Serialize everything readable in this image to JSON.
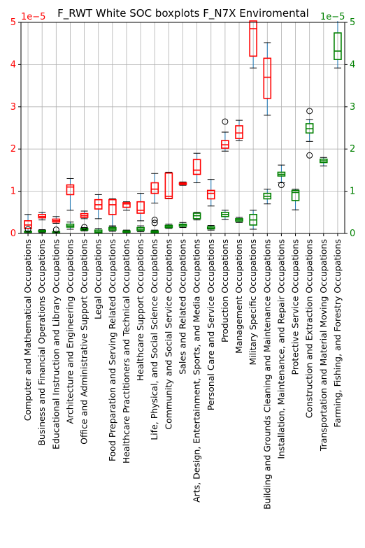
{
  "chart_data": {
    "type": "boxplot",
    "title": "F_RWT White SOC boxplots F_N7X Enviromental",
    "categories": [
      "Computer and Mathematical Occupations",
      "Business and Financial Operations Occupations",
      "Educational Instruction and Library Occupations",
      "Architecture and Engineering Occupations",
      "Office and Administrative Support Occupations",
      "Legal Occupations",
      "Food Preparation and Serving Related Occupations",
      "Healthcare Practitioners and Technical Occupations",
      "Healthcare Support Occupations",
      "Life, Physical, and Social Science Occupations",
      "Community and Social Service Occupations",
      "Sales and Related Occupations",
      "Arts, Design, Entertainment, Sports, and Media Occupations",
      "Personal Care and Service Occupations",
      "Production Occupations",
      "Management Occupations",
      "Military Specific Occupations",
      "Building and Grounds Cleaning and Maintenance Occupations",
      "Installation, Maintenance, and Repair Occupations",
      "Protective Service Occupations",
      "Construction and Extraction Occupations",
      "Transportation and Material Moving Occupations",
      "Farming, Fishing, and Forestry Occupations"
    ],
    "y_multiplier_left": "1e−5",
    "y_multiplier_right": "1e−5",
    "ylim": [
      0,
      5
    ],
    "yticks": [
      "0",
      "1",
      "2",
      "3",
      "4",
      "5"
    ],
    "grid": true,
    "series": [
      {
        "axis": "left",
        "color": "#ff0000",
        "boxes": [
          {
            "i": 0,
            "wlo": 0.05,
            "q1": 0.12,
            "med": 0.2,
            "q3": 0.3,
            "whi": 0.45,
            "fliers": []
          },
          {
            "i": 1,
            "wlo": 0.32,
            "q1": 0.37,
            "med": 0.4,
            "q3": 0.45,
            "whi": 0.5,
            "fliers": []
          },
          {
            "i": 2,
            "wlo": 0.24,
            "q1": 0.27,
            "med": 0.3,
            "q3": 0.34,
            "whi": 0.4,
            "fliers": []
          },
          {
            "i": 3,
            "wlo": 0.55,
            "q1": 0.92,
            "med": 1.1,
            "q3": 1.15,
            "whi": 1.3,
            "fliers": []
          },
          {
            "i": 4,
            "wlo": 0.35,
            "q1": 0.38,
            "med": 0.42,
            "q3": 0.47,
            "whi": 0.53,
            "fliers": []
          },
          {
            "i": 5,
            "wlo": 0.35,
            "q1": 0.58,
            "med": 0.68,
            "q3": 0.8,
            "whi": 0.92,
            "fliers": []
          },
          {
            "i": 6,
            "wlo": 0.18,
            "q1": 0.45,
            "med": 0.68,
            "q3": 0.8,
            "whi": 0.82,
            "fliers": []
          },
          {
            "i": 7,
            "wlo": 0.55,
            "q1": 0.62,
            "med": 0.7,
            "q3": 0.73,
            "whi": 0.75,
            "fliers": []
          },
          {
            "i": 8,
            "wlo": 0.3,
            "q1": 0.48,
            "med": 0.55,
            "q3": 0.75,
            "whi": 0.95,
            "fliers": []
          },
          {
            "i": 9,
            "wlo": 0.72,
            "q1": 0.95,
            "med": 1.05,
            "q3": 1.2,
            "whi": 1.42,
            "fliers": []
          },
          {
            "i": 10,
            "wlo": 0.82,
            "q1": 0.83,
            "med": 0.88,
            "q3": 1.43,
            "whi": 1.45,
            "fliers": []
          },
          {
            "i": 11,
            "wlo": 1.14,
            "q1": 1.16,
            "med": 1.18,
            "q3": 1.2,
            "whi": 1.22,
            "fliers": []
          },
          {
            "i": 12,
            "wlo": 1.2,
            "q1": 1.4,
            "med": 1.5,
            "q3": 1.75,
            "whi": 1.9,
            "fliers": []
          },
          {
            "i": 13,
            "wlo": 0.65,
            "q1": 0.82,
            "med": 0.95,
            "q3": 1.02,
            "whi": 1.28,
            "fliers": []
          },
          {
            "i": 14,
            "wlo": 1.95,
            "q1": 2.02,
            "med": 2.1,
            "q3": 2.2,
            "whi": 2.4,
            "fliers": [
              2.65
            ]
          },
          {
            "i": 15,
            "wlo": 2.2,
            "q1": 2.25,
            "med": 2.38,
            "q3": 2.55,
            "whi": 2.68,
            "fliers": []
          },
          {
            "i": 16,
            "wlo": 3.92,
            "q1": 4.2,
            "med": 4.85,
            "q3": 5.05,
            "whi": 5.2,
            "fliers": []
          },
          {
            "i": 17,
            "wlo": 2.8,
            "q1": 3.2,
            "med": 3.7,
            "q3": 4.15,
            "whi": 4.52,
            "fliers": []
          }
        ]
      },
      {
        "axis": "right",
        "color": "#008000",
        "boxes": [
          {
            "i": 0,
            "wlo": 0.02,
            "q1": 0.03,
            "med": 0.04,
            "q3": 0.05,
            "whi": 0.06,
            "fliers": [
              0.1
            ]
          },
          {
            "i": 1,
            "wlo": 0.02,
            "q1": 0.04,
            "med": 0.05,
            "q3": 0.07,
            "whi": 0.09,
            "fliers": []
          },
          {
            "i": 2,
            "wlo": 0.01,
            "q1": 0.02,
            "med": 0.03,
            "q3": 0.04,
            "whi": 0.05,
            "fliers": [
              0.09
            ]
          },
          {
            "i": 3,
            "wlo": 0.1,
            "q1": 0.15,
            "med": 0.18,
            "q3": 0.22,
            "whi": 0.27,
            "fliers": []
          },
          {
            "i": 4,
            "wlo": 0.06,
            "q1": 0.08,
            "med": 0.1,
            "q3": 0.12,
            "whi": 0.14,
            "fliers": [
              0.15
            ]
          },
          {
            "i": 5,
            "wlo": 0.0,
            "q1": 0.02,
            "med": 0.04,
            "q3": 0.08,
            "whi": 0.12,
            "fliers": []
          },
          {
            "i": 6,
            "wlo": 0.05,
            "q1": 0.08,
            "med": 0.11,
            "q3": 0.14,
            "whi": 0.17,
            "fliers": []
          },
          {
            "i": 7,
            "wlo": 0.02,
            "q1": 0.03,
            "med": 0.05,
            "q3": 0.06,
            "whi": 0.08,
            "fliers": []
          },
          {
            "i": 8,
            "wlo": 0.04,
            "q1": 0.07,
            "med": 0.1,
            "q3": 0.14,
            "whi": 0.18,
            "fliers": []
          },
          {
            "i": 9,
            "wlo": 0.0,
            "q1": 0.02,
            "med": 0.04,
            "q3": 0.06,
            "whi": 0.08,
            "fliers": [
              0.25,
              0.32
            ]
          },
          {
            "i": 10,
            "wlo": 0.12,
            "q1": 0.14,
            "med": 0.17,
            "q3": 0.19,
            "whi": 0.22,
            "fliers": []
          },
          {
            "i": 11,
            "wlo": 0.14,
            "q1": 0.17,
            "med": 0.2,
            "q3": 0.22,
            "whi": 0.26,
            "fliers": []
          },
          {
            "i": 12,
            "wlo": 0.32,
            "q1": 0.35,
            "med": 0.42,
            "q3": 0.48,
            "whi": 0.5,
            "fliers": []
          },
          {
            "i": 13,
            "wlo": 0.08,
            "q1": 0.11,
            "med": 0.13,
            "q3": 0.16,
            "whi": 0.19,
            "fliers": []
          },
          {
            "i": 14,
            "wlo": 0.33,
            "q1": 0.4,
            "med": 0.45,
            "q3": 0.5,
            "whi": 0.55,
            "fliers": []
          },
          {
            "i": 15,
            "wlo": 0.26,
            "q1": 0.29,
            "med": 0.32,
            "q3": 0.35,
            "whi": 0.38,
            "fliers": []
          },
          {
            "i": 16,
            "wlo": 0.1,
            "q1": 0.2,
            "med": 0.32,
            "q3": 0.45,
            "whi": 0.55,
            "fliers": []
          },
          {
            "i": 17,
            "wlo": 0.7,
            "q1": 0.82,
            "med": 0.88,
            "q3": 0.95,
            "whi": 1.05,
            "fliers": []
          },
          {
            "i": 18,
            "wlo": 1.2,
            "q1": 1.36,
            "med": 1.4,
            "q3": 1.45,
            "whi": 1.62,
            "fliers": [
              1.15
            ]
          },
          {
            "i": 19,
            "wlo": 0.56,
            "q1": 0.78,
            "med": 0.97,
            "q3": 1.02,
            "whi": 1.05,
            "fliers": []
          },
          {
            "i": 20,
            "wlo": 2.18,
            "q1": 2.38,
            "med": 2.48,
            "q3": 2.6,
            "whi": 2.7,
            "fliers": [
              1.85,
              2.9
            ]
          },
          {
            "i": 21,
            "wlo": 1.6,
            "q1": 1.68,
            "med": 1.72,
            "q3": 1.76,
            "whi": 1.8,
            "fliers": []
          },
          {
            "i": 22,
            "wlo": 3.92,
            "q1": 4.12,
            "med": 4.32,
            "q3": 4.75,
            "whi": 5.1,
            "fliers": []
          }
        ]
      }
    ]
  },
  "style": {
    "left_axis_color": "#ff0000",
    "right_axis_color": "#008000",
    "whisker_color": "#1f77b4",
    "grid_color": "#b0b0b0"
  }
}
